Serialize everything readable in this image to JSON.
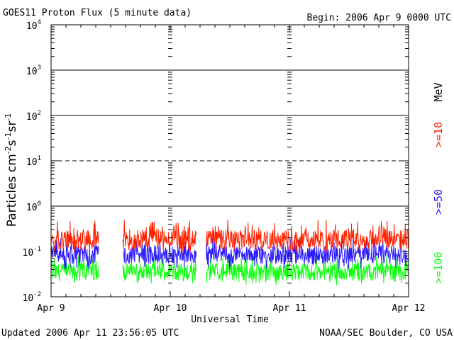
{
  "header": {
    "title": "GOES11 Proton Flux (5 minute data)",
    "begin": "Begin: 2006 Apr 9 0000 UTC"
  },
  "footer": {
    "updated": "Updated 2006 Apr 11 23:56:05 UTC",
    "credit": "NOAA/SEC Boulder, CO USA"
  },
  "colors": {
    "ge10": "#ff2200",
    "ge50": "#2a1aff",
    "ge100": "#11ff11",
    "axis": "#000000"
  },
  "chart_data": {
    "type": "line",
    "title": "GOES11 Proton Flux (5 minute data)",
    "xlabel": "Universal Time",
    "ylabel": "Particles cm-2s-1sr-1",
    "yscale": "log",
    "ylim": [
      0.01,
      10000
    ],
    "xlim_days": [
      0,
      3
    ],
    "x_ticks": [
      "Apr 9",
      "Apr 10",
      "Apr 11",
      "Apr 12"
    ],
    "y_ticks": [
      {
        "base": "10",
        "exp": "-2"
      },
      {
        "base": "10",
        "exp": "-1"
      },
      {
        "base": "10",
        "exp": "0"
      },
      {
        "base": "10",
        "exp": "1"
      },
      {
        "base": "10",
        "exp": "2"
      },
      {
        "base": "10",
        "exp": "3"
      },
      {
        "base": "10",
        "exp": "4"
      }
    ],
    "thresholds": [
      {
        "value": 1,
        "style": "solid"
      },
      {
        "value": 10,
        "style": "dashed"
      },
      {
        "value": 100,
        "style": "solid"
      },
      {
        "value": 1000,
        "style": "solid"
      }
    ],
    "units_label": "MeV",
    "data_gaps_days": [
      [
        0.4,
        0.6
      ],
      [
        1.22,
        1.3
      ]
    ],
    "series": [
      {
        "name": ">=10",
        "color_key": "ge10",
        "typical": 0.18,
        "range": [
          0.09,
          0.5
        ]
      },
      {
        "name": ">=50",
        "color_key": "ge50",
        "typical": 0.085,
        "range": [
          0.04,
          0.2
        ]
      },
      {
        "name": ">=100",
        "color_key": "ge100",
        "typical": 0.035,
        "range": [
          0.018,
          0.08
        ]
      }
    ]
  }
}
